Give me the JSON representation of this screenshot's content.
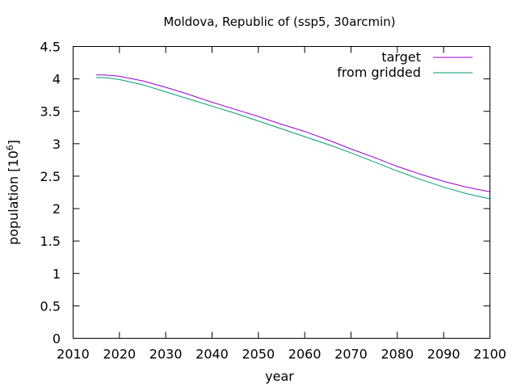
{
  "chart_data": {
    "type": "line",
    "title": "Moldova, Republic of (ssp5, 30arcmin)",
    "xlabel": "year",
    "ylabel": "population [10^6]",
    "ylabel_base": "population [10",
    "ylabel_exp": "6",
    "ylabel_close": "]",
    "xlim": [
      2010,
      2100
    ],
    "ylim": [
      0,
      4.5
    ],
    "xticks": [
      2010,
      2020,
      2030,
      2040,
      2050,
      2060,
      2070,
      2080,
      2090,
      2100
    ],
    "yticks": [
      0,
      0.5,
      1,
      1.5,
      2,
      2.5,
      3,
      3.5,
      4,
      4.5
    ],
    "ytick_labels": [
      "0",
      "0.5",
      "1",
      "1.5",
      "2",
      "2.5",
      "3",
      "3.5",
      "4",
      "4.5"
    ],
    "grid": false,
    "legend_position": "top-right",
    "series": [
      {
        "name": "target",
        "color": "#9400d3",
        "x": [
          2015,
          2017,
          2020,
          2025,
          2030,
          2035,
          2040,
          2045,
          2050,
          2055,
          2060,
          2065,
          2070,
          2075,
          2080,
          2085,
          2090,
          2095,
          2100
        ],
        "y": [
          4.06,
          4.06,
          4.04,
          3.97,
          3.87,
          3.76,
          3.64,
          3.53,
          3.42,
          3.3,
          3.19,
          3.06,
          2.92,
          2.79,
          2.65,
          2.53,
          2.42,
          2.33,
          2.26
        ]
      },
      {
        "name": "from gridded",
        "color": "#009e73",
        "x": [
          2015,
          2017,
          2020,
          2025,
          2030,
          2035,
          2040,
          2045,
          2050,
          2055,
          2060,
          2065,
          2070,
          2075,
          2080,
          2085,
          2090,
          2095,
          2100
        ],
        "y": [
          4.02,
          4.02,
          3.99,
          3.91,
          3.8,
          3.69,
          3.58,
          3.47,
          3.35,
          3.23,
          3.11,
          2.99,
          2.86,
          2.72,
          2.58,
          2.45,
          2.33,
          2.23,
          2.15
        ]
      }
    ]
  }
}
